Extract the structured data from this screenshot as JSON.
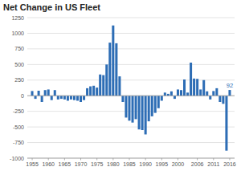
{
  "chart_data": {
    "type": "bar",
    "title": "Net Change in US Fleet",
    "x": [
      1955,
      1956,
      1957,
      1958,
      1959,
      1960,
      1961,
      1962,
      1963,
      1964,
      1965,
      1966,
      1967,
      1968,
      1969,
      1970,
      1971,
      1972,
      1973,
      1974,
      1975,
      1976,
      1977,
      1978,
      1979,
      1980,
      1981,
      1982,
      1983,
      1984,
      1985,
      1986,
      1987,
      1988,
      1989,
      1990,
      1991,
      1992,
      1993,
      1994,
      1995,
      1996,
      1997,
      1998,
      1999,
      2000,
      2001,
      2002,
      2003,
      2004,
      2005,
      2006,
      2007,
      2008,
      2009,
      2010,
      2011,
      2012,
      2013,
      2014,
      2015,
      2016
    ],
    "values": [
      75,
      -50,
      80,
      -100,
      90,
      100,
      -70,
      90,
      -60,
      -50,
      -60,
      -80,
      -60,
      -70,
      -80,
      -100,
      -70,
      120,
      150,
      160,
      130,
      340,
      330,
      500,
      850,
      1125,
      840,
      310,
      -100,
      -350,
      -400,
      -430,
      -375,
      -540,
      -550,
      -620,
      -410,
      -330,
      -275,
      -200,
      -80,
      50,
      30,
      70,
      -50,
      100,
      90,
      260,
      50,
      530,
      275,
      270,
      100,
      250,
      70,
      -60,
      75,
      120,
      -100,
      -130,
      -880,
      92
    ],
    "color": "#2d6db5",
    "xlim": [
      1953.5,
      2017.5
    ],
    "xticks": [
      1955,
      1960,
      1965,
      1970,
      1975,
      1980,
      1985,
      1990,
      1995,
      2000,
      2006,
      2011,
      2016
    ],
    "ylim": [
      -1000,
      1250
    ],
    "yticks": [
      -1000,
      -750,
      -500,
      -250,
      0,
      250,
      500,
      750,
      1000,
      1250
    ],
    "grid": true,
    "annotations": [
      {
        "text": "92",
        "x": 2016,
        "y": 92,
        "color": "#2d6db5"
      }
    ]
  }
}
